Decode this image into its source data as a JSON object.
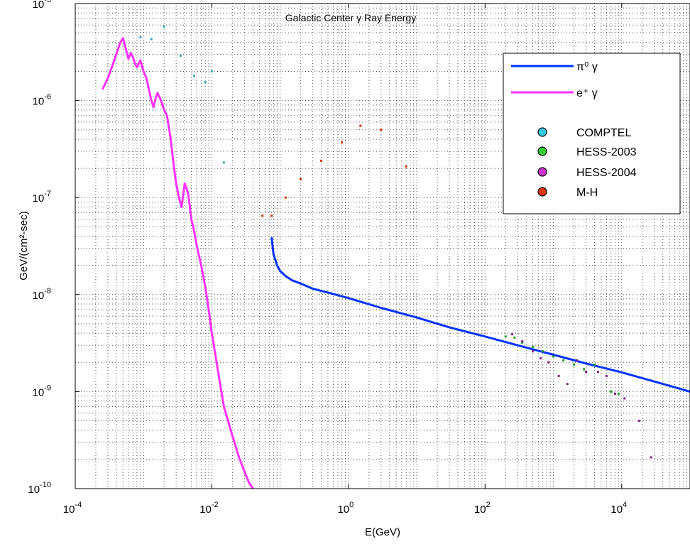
{
  "chart_data": {
    "type": "scatter",
    "title": "Galactic Center γ Ray Energy",
    "xlabel": "E(GeV)",
    "ylabel": "GeV/(cm²-sec)",
    "x_scale": "log",
    "y_scale": "log",
    "xlim": [
      0.0001,
      100000
    ],
    "ylim": [
      1e-10,
      1e-05
    ],
    "grid": true,
    "legend_position": "top-right",
    "x_ticks": [
      {
        "value": 0.0001,
        "base": "10",
        "exp": "-4"
      },
      {
        "value": 0.01,
        "base": "10",
        "exp": "-2"
      },
      {
        "value": 1,
        "base": "10",
        "exp": "0"
      },
      {
        "value": 100,
        "base": "10",
        "exp": "2"
      },
      {
        "value": 10000,
        "base": "10",
        "exp": "4"
      }
    ],
    "y_ticks": [
      {
        "value": 1e-10,
        "base": "10",
        "exp": "-10"
      },
      {
        "value": 1e-09,
        "base": "10",
        "exp": "-9"
      },
      {
        "value": 1e-08,
        "base": "10",
        "exp": "-8"
      },
      {
        "value": 1e-07,
        "base": "10",
        "exp": "-7"
      },
      {
        "value": 1e-06,
        "base": "10",
        "exp": "-6"
      },
      {
        "value": 1e-05,
        "base": "10",
        "exp": "-5"
      }
    ],
    "legend": [
      {
        "label": "π⁰ γ",
        "kind": "line",
        "color": "#0033ff"
      },
      {
        "label": "e⁺ γ",
        "kind": "line",
        "color": "#ff33ff"
      },
      {
        "label": "COMPTEL",
        "kind": "marker",
        "color": "#33ccdd"
      },
      {
        "label": "HESS-2003",
        "kind": "marker",
        "color": "#33cc33"
      },
      {
        "label": "HESS-2004",
        "kind": "marker",
        "color": "#cc33cc"
      },
      {
        "label": "M-H",
        "kind": "marker",
        "color": "#dd3311"
      }
    ],
    "series": [
      {
        "name": "π⁰ γ",
        "kind": "line",
        "color": "#0033ff",
        "x": [
          0.075,
          0.08,
          0.09,
          0.1,
          0.12,
          0.15,
          0.2,
          0.3,
          0.5,
          1,
          3,
          10,
          30,
          100,
          300,
          1000,
          3000,
          10000,
          30000,
          100000
        ],
        "y": [
          3.9e-08,
          2.6e-08,
          2e-08,
          1.75e-08,
          1.55e-08,
          1.4e-08,
          1.3e-08,
          1.15e-08,
          1.05e-08,
          9.2e-09,
          7.3e-09,
          5.8e-09,
          4.6e-09,
          3.7e-09,
          3e-09,
          2.4e-09,
          1.95e-09,
          1.58e-09,
          1.27e-09,
          1e-09
        ]
      },
      {
        "name": "e⁺ γ",
        "kind": "line",
        "color": "#ff33ff",
        "x": [
          0.00025,
          0.0003,
          0.00035,
          0.0004,
          0.00045,
          0.0005,
          0.00055,
          0.0006,
          0.00065,
          0.0007,
          0.00075,
          0.0008,
          0.0009,
          0.001,
          0.0011,
          0.0012,
          0.0013,
          0.0014,
          0.0015,
          0.0016,
          0.0018,
          0.002,
          0.0022,
          0.0025,
          0.0028,
          0.003,
          0.0033,
          0.0036,
          0.004,
          0.0045,
          0.005,
          0.0055,
          0.006,
          0.007,
          0.008,
          0.009,
          0.01,
          0.012,
          0.015,
          0.02,
          0.025,
          0.03,
          0.035,
          0.04
        ],
        "y": [
          1.3e-06,
          1.7e-06,
          2.3e-06,
          3e-06,
          3.9e-06,
          4.4e-06,
          3.4e-06,
          2.7e-06,
          3.1e-06,
          2.8e-06,
          2.4e-06,
          2.2e-06,
          2.6e-06,
          2e-06,
          1.7e-06,
          1.3e-06,
          1e-06,
          8.5e-07,
          1.05e-06,
          1.2e-06,
          1e-06,
          8e-07,
          7e-07,
          4e-07,
          2e-07,
          1.4e-07,
          1e-07,
          8e-08,
          1.4e-07,
          1.1e-07,
          6e-08,
          4.5e-08,
          3.2e-08,
          2e-08,
          1.2e-08,
          7e-09,
          4e-09,
          1.8e-09,
          7e-10,
          3.5e-10,
          2.1e-10,
          1.5e-10,
          1.15e-10,
          1e-10
        ]
      },
      {
        "name": "COMPTEL",
        "kind": "scatter",
        "color": "#33aabb",
        "x": [
          0.0009,
          0.0013,
          0.002,
          0.0035,
          0.0055,
          0.008,
          0.01,
          0.015
        ],
        "y": [
          4.5e-06,
          4.3e-06,
          5.8e-06,
          2.9e-06,
          1.8e-06,
          1.55e-06,
          2e-06,
          2.3e-07
        ]
      },
      {
        "name": "M-H",
        "kind": "scatter",
        "color": "#cc3300",
        "x": [
          0.055,
          0.075,
          0.12,
          0.2,
          0.4,
          0.8,
          1.5,
          3,
          7
        ],
        "y": [
          6.5e-08,
          6.5e-08,
          1e-07,
          1.55e-07,
          2.4e-07,
          3.7e-07,
          5.5e-07,
          5e-07,
          2.1e-07
        ]
      },
      {
        "name": "HESS-2003",
        "kind": "scatter",
        "color": "#229922",
        "x": [
          200,
          270,
          350,
          500,
          700,
          1000,
          1400,
          2000,
          2800,
          4000,
          7000,
          9000
        ],
        "y": [
          3.7e-09,
          3.6e-09,
          3.2e-09,
          2.9e-09,
          2.6e-09,
          2.3e-09,
          2.1e-09,
          1.9e-09,
          1.7e-09,
          1.9e-09,
          1e-09,
          9.5e-10
        ]
      },
      {
        "name": "HESS-2004",
        "kind": "scatter",
        "color": "#882288",
        "x": [
          250,
          350,
          500,
          650,
          850,
          1200,
          1600,
          2200,
          3000,
          4500,
          6000,
          8000,
          11000,
          18000,
          27000
        ],
        "y": [
          3.9e-09,
          3.3e-09,
          2.6e-09,
          2.2e-09,
          2e-09,
          1.45e-09,
          1.2e-09,
          2.1e-09,
          1.6e-09,
          1.6e-09,
          1.45e-09,
          9.5e-10,
          8.5e-10,
          5e-10,
          2.1e-10
        ]
      }
    ]
  }
}
